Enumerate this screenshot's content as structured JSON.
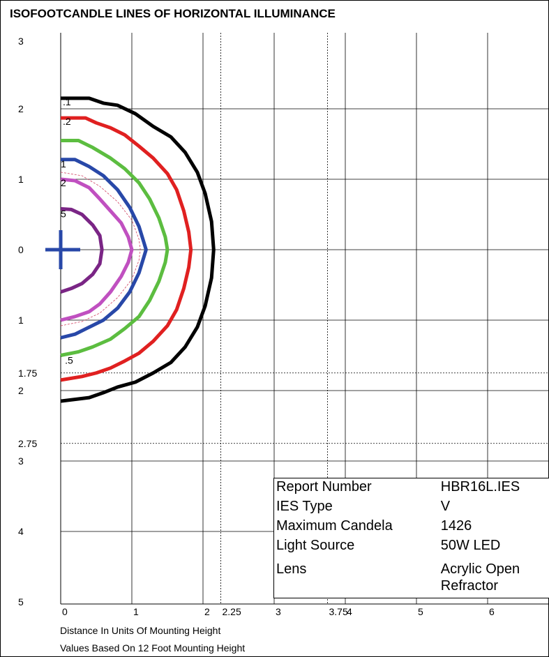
{
  "chart_data": {
    "type": "line",
    "title": "ISOFOOTCANDLE LINES OF HORIZONTAL ILLUMINANCE",
    "xlabel": "Distance In Units Of Mounting Height",
    "footnote": "Values Based On 12 Foot Mounting Height",
    "xlim": [
      0,
      7
    ],
    "ylim": [
      -5,
      3
    ],
    "x_ticks": [
      {
        "v": 0,
        "label": "0"
      },
      {
        "v": 1,
        "label": "1"
      },
      {
        "v": 2,
        "label": "2"
      },
      {
        "v": 2.25,
        "label": "2.25"
      },
      {
        "v": 3,
        "label": "3"
      },
      {
        "v": 3.75,
        "label": "3.75"
      },
      {
        "v": 4,
        "label": "4"
      },
      {
        "v": 5,
        "label": "5"
      },
      {
        "v": 6,
        "label": "6"
      }
    ],
    "y_ticks": [
      {
        "v": 3,
        "label": "3"
      },
      {
        "v": 2,
        "label": "2"
      },
      {
        "v": 1,
        "label": "1"
      },
      {
        "v": 0,
        "label": "0"
      },
      {
        "v": -1,
        "label": "1"
      },
      {
        "v": -1.75,
        "label": "1.75"
      },
      {
        "v": -2,
        "label": "2"
      },
      {
        "v": -2.75,
        "label": "2.75"
      },
      {
        "v": -3,
        "label": "3"
      },
      {
        "v": -4,
        "label": "4"
      },
      {
        "v": -5,
        "label": "5"
      }
    ],
    "grid_solid_x": [
      1,
      2,
      3,
      4,
      5,
      6
    ],
    "grid_dashed_x": [
      2.25,
      3.75
    ],
    "grid_solid_y": [
      2,
      1,
      0,
      -1,
      -2,
      -3,
      -4
    ],
    "grid_dashed_y": [
      -1.75,
      -2.75
    ],
    "luminaire_marker": {
      "x": 0,
      "y": 0
    },
    "series": [
      {
        "label": ".1",
        "color": "#000000",
        "label_at": {
          "x": 0.03,
          "y": 2.05
        },
        "points": [
          [
            0,
            2.15
          ],
          [
            0.4,
            2.15
          ],
          [
            0.6,
            2.08
          ],
          [
            0.8,
            2.05
          ],
          [
            1.05,
            1.93
          ],
          [
            1.3,
            1.75
          ],
          [
            1.55,
            1.6
          ],
          [
            1.75,
            1.38
          ],
          [
            1.92,
            1.1
          ],
          [
            2.03,
            0.8
          ],
          [
            2.12,
            0.4
          ],
          [
            2.15,
            0
          ],
          [
            2.12,
            -0.4
          ],
          [
            2.03,
            -0.8
          ],
          [
            1.92,
            -1.1
          ],
          [
            1.75,
            -1.38
          ],
          [
            1.55,
            -1.6
          ],
          [
            1.3,
            -1.75
          ],
          [
            1.05,
            -1.88
          ],
          [
            0.8,
            -1.95
          ],
          [
            0.6,
            -2.03
          ],
          [
            0.4,
            -2.1
          ],
          [
            0,
            -2.15
          ]
        ]
      },
      {
        "label": ".2",
        "color": "#e02020",
        "label_at": {
          "x": 0.03,
          "y": 1.77
        },
        "points": [
          [
            0,
            1.87
          ],
          [
            0.35,
            1.87
          ],
          [
            0.5,
            1.8
          ],
          [
            0.7,
            1.73
          ],
          [
            0.9,
            1.63
          ],
          [
            1.1,
            1.47
          ],
          [
            1.3,
            1.3
          ],
          [
            1.5,
            1.08
          ],
          [
            1.63,
            0.85
          ],
          [
            1.73,
            0.55
          ],
          [
            1.8,
            0.25
          ],
          [
            1.83,
            0
          ],
          [
            1.8,
            -0.25
          ],
          [
            1.73,
            -0.55
          ],
          [
            1.63,
            -0.85
          ],
          [
            1.5,
            -1.08
          ],
          [
            1.3,
            -1.3
          ],
          [
            1.1,
            -1.47
          ],
          [
            0.9,
            -1.58
          ],
          [
            0.7,
            -1.68
          ],
          [
            0.5,
            -1.75
          ],
          [
            0.3,
            -1.8
          ],
          [
            0,
            -1.85
          ]
        ]
      },
      {
        "label": ".5",
        "color": "#5cbd40",
        "label_at": {
          "x": 0.06,
          "y": -1.62
        },
        "points": [
          [
            0,
            1.55
          ],
          [
            0.25,
            1.55
          ],
          [
            0.45,
            1.45
          ],
          [
            0.7,
            1.3
          ],
          [
            0.9,
            1.15
          ],
          [
            1.1,
            0.95
          ],
          [
            1.25,
            0.72
          ],
          [
            1.38,
            0.45
          ],
          [
            1.47,
            0.18
          ],
          [
            1.5,
            0
          ],
          [
            1.47,
            -0.18
          ],
          [
            1.38,
            -0.45
          ],
          [
            1.25,
            -0.72
          ],
          [
            1.1,
            -0.95
          ],
          [
            0.9,
            -1.12
          ],
          [
            0.7,
            -1.27
          ],
          [
            0.45,
            -1.38
          ],
          [
            0.25,
            -1.45
          ],
          [
            0,
            -1.5
          ]
        ]
      },
      {
        "label": "1",
        "color": "#2848a8",
        "label_at": {
          "x": 0.0,
          "y": 1.17
        },
        "points": [
          [
            0,
            1.28
          ],
          [
            0.2,
            1.28
          ],
          [
            0.4,
            1.18
          ],
          [
            0.6,
            1.05
          ],
          [
            0.8,
            0.85
          ],
          [
            0.97,
            0.6
          ],
          [
            1.1,
            0.33
          ],
          [
            1.17,
            0.1
          ],
          [
            1.2,
            0
          ],
          [
            1.17,
            -0.1
          ],
          [
            1.1,
            -0.33
          ],
          [
            0.97,
            -0.6
          ],
          [
            0.8,
            -0.83
          ],
          [
            0.6,
            -1.0
          ],
          [
            0.4,
            -1.1
          ],
          [
            0.2,
            -1.2
          ],
          [
            0,
            -1.25
          ]
        ]
      },
      {
        "label": "2",
        "color": "#c050c0",
        "label_at": {
          "x": 0.0,
          "y": 0.9
        },
        "points": [
          [
            0,
            1.0
          ],
          [
            0.2,
            0.98
          ],
          [
            0.4,
            0.88
          ],
          [
            0.55,
            0.72
          ],
          [
            0.7,
            0.55
          ],
          [
            0.85,
            0.38
          ],
          [
            0.95,
            0.18
          ],
          [
            1.0,
            0
          ],
          [
            0.95,
            -0.18
          ],
          [
            0.85,
            -0.38
          ],
          [
            0.7,
            -0.6
          ],
          [
            0.55,
            -0.77
          ],
          [
            0.4,
            -0.88
          ],
          [
            0.2,
            -0.95
          ],
          [
            0,
            -1.0
          ]
        ]
      },
      {
        "label": "5",
        "color": "#7a2585",
        "label_at": {
          "x": 0.0,
          "y": 0.46
        },
        "points": [
          [
            0,
            0.58
          ],
          [
            0.15,
            0.57
          ],
          [
            0.3,
            0.5
          ],
          [
            0.45,
            0.35
          ],
          [
            0.55,
            0.2
          ],
          [
            0.58,
            0
          ],
          [
            0.55,
            -0.2
          ],
          [
            0.45,
            -0.35
          ],
          [
            0.3,
            -0.48
          ],
          [
            0.15,
            -0.55
          ],
          [
            0,
            -0.6
          ]
        ]
      }
    ],
    "dashed_contour": {
      "color": "#d04060",
      "points": [
        [
          0,
          1.1
        ],
        [
          0.3,
          1.05
        ],
        [
          0.55,
          0.9
        ],
        [
          0.8,
          0.68
        ],
        [
          1.0,
          0.42
        ],
        [
          1.1,
          0.15
        ],
        [
          1.12,
          0
        ],
        [
          1.1,
          -0.15
        ],
        [
          1.0,
          -0.42
        ],
        [
          0.8,
          -0.68
        ],
        [
          0.55,
          -0.9
        ],
        [
          0.3,
          -1.02
        ],
        [
          0,
          -1.08
        ]
      ]
    }
  },
  "info": {
    "rows": [
      {
        "key": "Report Number",
        "value": "HBR16L.IES"
      },
      {
        "key": "IES Type",
        "value": "V"
      },
      {
        "key": "Maximum Candela",
        "value": "1426"
      },
      {
        "key": "Light Source",
        "value": "50W LED"
      },
      {
        "key": "Lens",
        "value": "Acrylic Open Refractor"
      }
    ]
  }
}
